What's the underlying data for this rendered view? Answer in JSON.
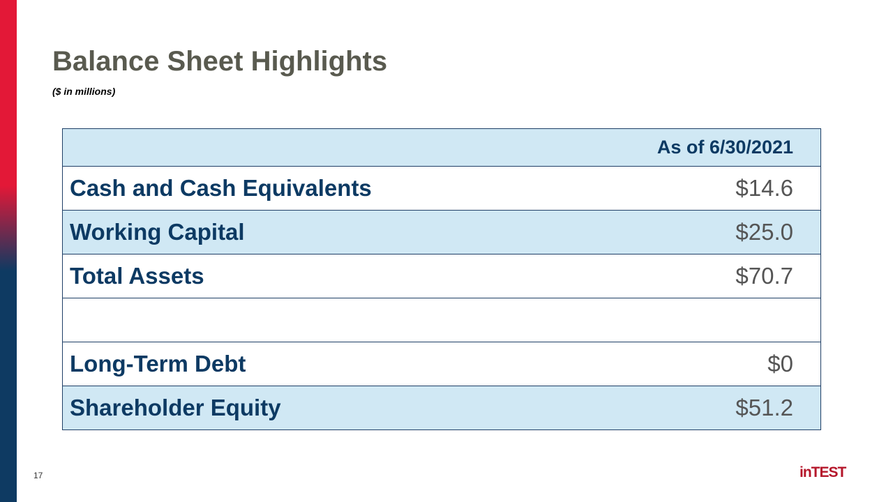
{
  "header": {
    "title": "Balance Sheet Highlights",
    "subtitle": "($ in millions)"
  },
  "table": {
    "column_header": "As of 6/30/2021",
    "groups": [
      [
        [
          "Cash and Cash Equivalents",
          "$14.6"
        ],
        [
          "Working Capital",
          "$25.0"
        ],
        [
          "Total Assets",
          "$70.7"
        ]
      ],
      [
        [
          "Long-Term Debt",
          "$0"
        ],
        [
          "Shareholder Equity",
          "$51.2"
        ]
      ]
    ]
  },
  "footer": {
    "page_number": "17",
    "logo": "inTEST"
  }
}
